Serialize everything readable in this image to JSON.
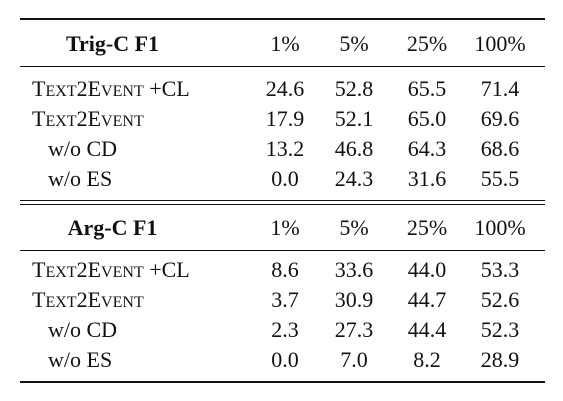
{
  "sections": [
    {
      "title": "Trig-C F1",
      "columns": [
        "1%",
        "5%",
        "25%",
        "100%"
      ],
      "rows": [
        {
          "label": "Text2Event +CL",
          "values": [
            "24.6",
            "52.8",
            "65.5",
            "71.4"
          ]
        },
        {
          "label": "Text2Event",
          "values": [
            "17.9",
            "52.1",
            "65.0",
            "69.6"
          ]
        },
        {
          "label": "w/o CD",
          "values": [
            "13.2",
            "46.8",
            "64.3",
            "68.6"
          ]
        },
        {
          "label": "w/o ES",
          "values": [
            "0.0",
            "24.3",
            "31.6",
            "55.5"
          ]
        }
      ]
    },
    {
      "title": "Arg-C F1",
      "columns": [
        "1%",
        "5%",
        "25%",
        "100%"
      ],
      "rows": [
        {
          "label": "Text2Event +CL",
          "values": [
            "8.6",
            "33.6",
            "44.0",
            "53.3"
          ]
        },
        {
          "label": "Text2Event",
          "values": [
            "3.7",
            "30.9",
            "44.7",
            "52.6"
          ]
        },
        {
          "label": "w/o CD",
          "values": [
            "2.3",
            "27.3",
            "44.4",
            "52.3"
          ]
        },
        {
          "label": "w/o ES",
          "values": [
            "0.0",
            "7.0",
            "8.2",
            "28.9"
          ]
        }
      ]
    }
  ]
}
